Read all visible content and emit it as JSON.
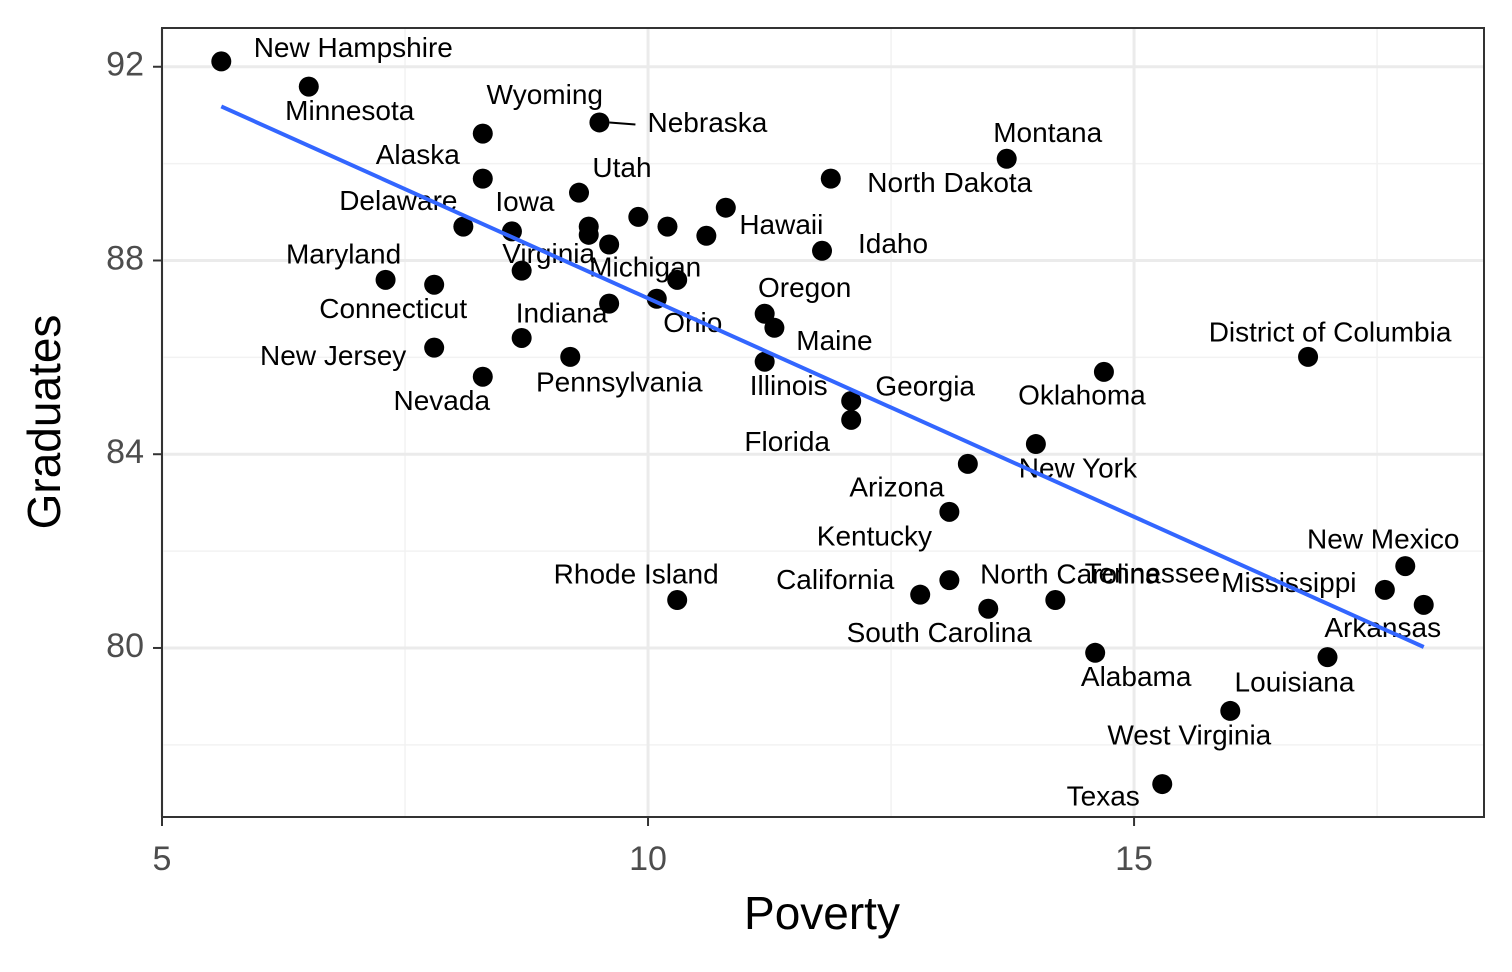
{
  "chart_data": {
    "type": "scatter",
    "x_label": "Poverty",
    "y_label": "Graduates",
    "xlim": [
      5,
      18.6
    ],
    "ylim": [
      76.51,
      92.8
    ],
    "xticks": [
      5,
      10,
      15
    ],
    "yticks": [
      80,
      84,
      88,
      92
    ],
    "grid": true,
    "color": "#000000",
    "labels": [
      "New Hampshire",
      "Minnesota",
      "Wyoming",
      "Nebraska",
      "Alaska",
      "Utah",
      "Montana",
      "North Dakota",
      "Delaware",
      "Iowa",
      "Hawaii",
      "Idaho",
      "Maryland",
      "Virginia",
      "Michigan",
      "Connecticut",
      "Indiana",
      "Ohio",
      "Oregon",
      "Maine",
      "District of Columbia",
      "New Jersey",
      "Pennsylvania",
      "Illinois",
      "Georgia",
      "Oklahoma",
      "Nevada",
      "Florida",
      "New York",
      "Arizona",
      "Kentucky",
      "New Mexico",
      "Rhode Island",
      "California",
      "North Carolina",
      "Mississippi",
      "South Carolina",
      "Tennessee",
      "Alabama",
      "Arkansas",
      "Louisiana",
      "West Virginia",
      "Texas",
      null,
      null,
      null,
      null,
      null,
      null,
      null
    ],
    "x": [
      5.61,
      6.51,
      8.3,
      9.5,
      8.3,
      9.29,
      13.69,
      11.88,
      8.1,
      8.6,
      10.6,
      11.79,
      7.3,
      8.7,
      10.3,
      7.8,
      8.7,
      10.09,
      11.2,
      11.3,
      16.79,
      7.8,
      9.2,
      11.2,
      12.09,
      14.69,
      8.3,
      12.09,
      13.99,
      13.29,
      13.1,
      17.79,
      10.3,
      12.8,
      13.1,
      17.58,
      13.5,
      14.19,
      14.6,
      17.98,
      16.99,
      15.99,
      15.29,
      9.39,
      9.39,
      9.6,
      9.9,
      10.2,
      10.8,
      9.6
    ],
    "y": [
      92.11,
      91.59,
      90.62,
      90.85,
      89.69,
      89.4,
      90.1,
      89.69,
      88.7,
      88.6,
      88.51,
      88.2,
      87.6,
      87.79,
      87.6,
      87.5,
      86.4,
      87.21,
      86.9,
      86.61,
      86.01,
      86.2,
      86.01,
      85.91,
      85.1,
      85.7,
      85.6,
      84.71,
      84.21,
      83.8,
      82.81,
      81.69,
      80.99,
      81.1,
      81.4,
      81.2,
      80.81,
      80.99,
      79.9,
      80.89,
      79.81,
      78.7,
      77.19,
      88.7,
      88.53,
      88.33,
      88.9,
      88.7,
      89.09,
      87.11
    ],
    "fit_line": {
      "x": [
        5.61,
        17.98
      ],
      "y": [
        91.18,
        80.02
      ],
      "color": "#3366ff"
    }
  }
}
